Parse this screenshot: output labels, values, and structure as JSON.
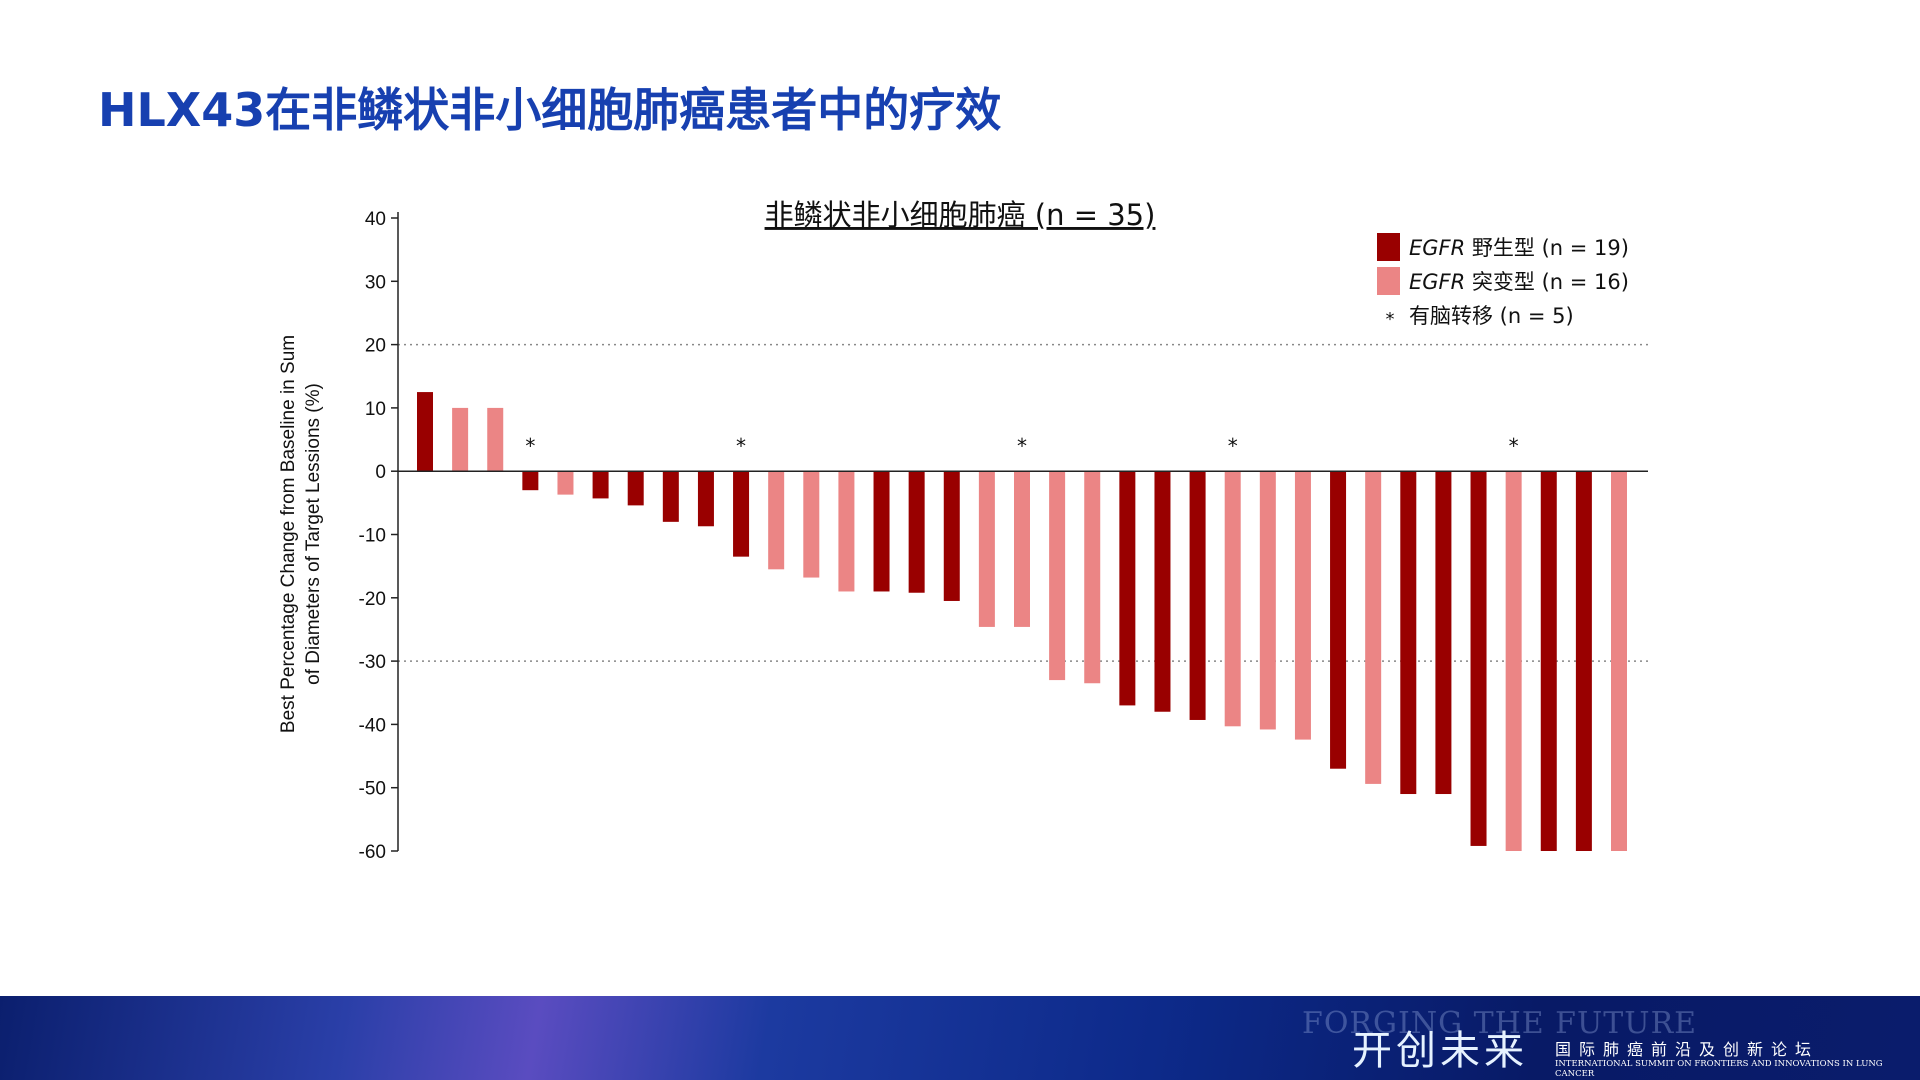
{
  "slide": {
    "title": "HLX43在非鳞状非小细胞肺癌患者中的疗效"
  },
  "chart_data": {
    "type": "bar",
    "title": "非鳞状非小细胞肺癌 (n = 35)",
    "ylabel_lines": [
      "Best Percentage Change from Baseline in Sum",
      "of Diameters of Target Lessions (%)"
    ],
    "xlabel": "",
    "ylim": [
      -60,
      40
    ],
    "yticks": [
      40,
      30,
      20,
      10,
      0,
      -10,
      -20,
      -30,
      -40,
      -50,
      -60
    ],
    "reference_lines": [
      20,
      -30
    ],
    "grid": false,
    "legend_position": "top-right",
    "legend": [
      {
        "key": "WT",
        "italic": "EGFR",
        "label": " 野生型 (n = 19)",
        "color": "#990000"
      },
      {
        "key": "MUT",
        "italic": "EGFR",
        "label": " 突变型 (n = 16)",
        "color": "#EB8585"
      },
      {
        "key": "BM",
        "symbol": "*",
        "label": "有脑转移 (n = 5)"
      }
    ],
    "values": [
      12.5,
      10,
      10,
      -3,
      -3.7,
      -4.3,
      -5.4,
      -8,
      -8.7,
      -13.5,
      -15.5,
      -16.8,
      -19,
      -19,
      -19.2,
      -20.5,
      -24.6,
      -24.6,
      -33,
      -33.5,
      -37,
      -38,
      -39.3,
      -40.3,
      -40.8,
      -42.4,
      -47,
      -49.4,
      -51,
      -51,
      -59.2,
      -60,
      -60,
      -60,
      -60
    ],
    "groups": [
      "WT",
      "MUT",
      "MUT",
      "WT",
      "MUT",
      "WT",
      "WT",
      "WT",
      "WT",
      "WT",
      "MUT",
      "MUT",
      "MUT",
      "WT",
      "WT",
      "WT",
      "MUT",
      "MUT",
      "MUT",
      "MUT",
      "WT",
      "WT",
      "WT",
      "MUT",
      "MUT",
      "MUT",
      "WT",
      "MUT",
      "WT",
      "WT",
      "WT",
      "MUT",
      "WT",
      "WT",
      "MUT"
    ],
    "brain_metastasis": [
      false,
      false,
      false,
      true,
      false,
      false,
      false,
      false,
      false,
      true,
      false,
      false,
      false,
      false,
      false,
      false,
      false,
      true,
      false,
      false,
      false,
      false,
      false,
      true,
      false,
      false,
      false,
      false,
      false,
      false,
      false,
      true,
      false,
      false,
      false
    ]
  },
  "footer": {
    "ghost_text": "FORGING THE FUTURE",
    "brand": "开创未来",
    "subtitle_cn": "国际肺癌前沿及创新论坛",
    "subtitle_en": "INTERNATIONAL SUMMIT ON FRONTIERS AND INNOVATIONS IN LUNG CANCER"
  }
}
